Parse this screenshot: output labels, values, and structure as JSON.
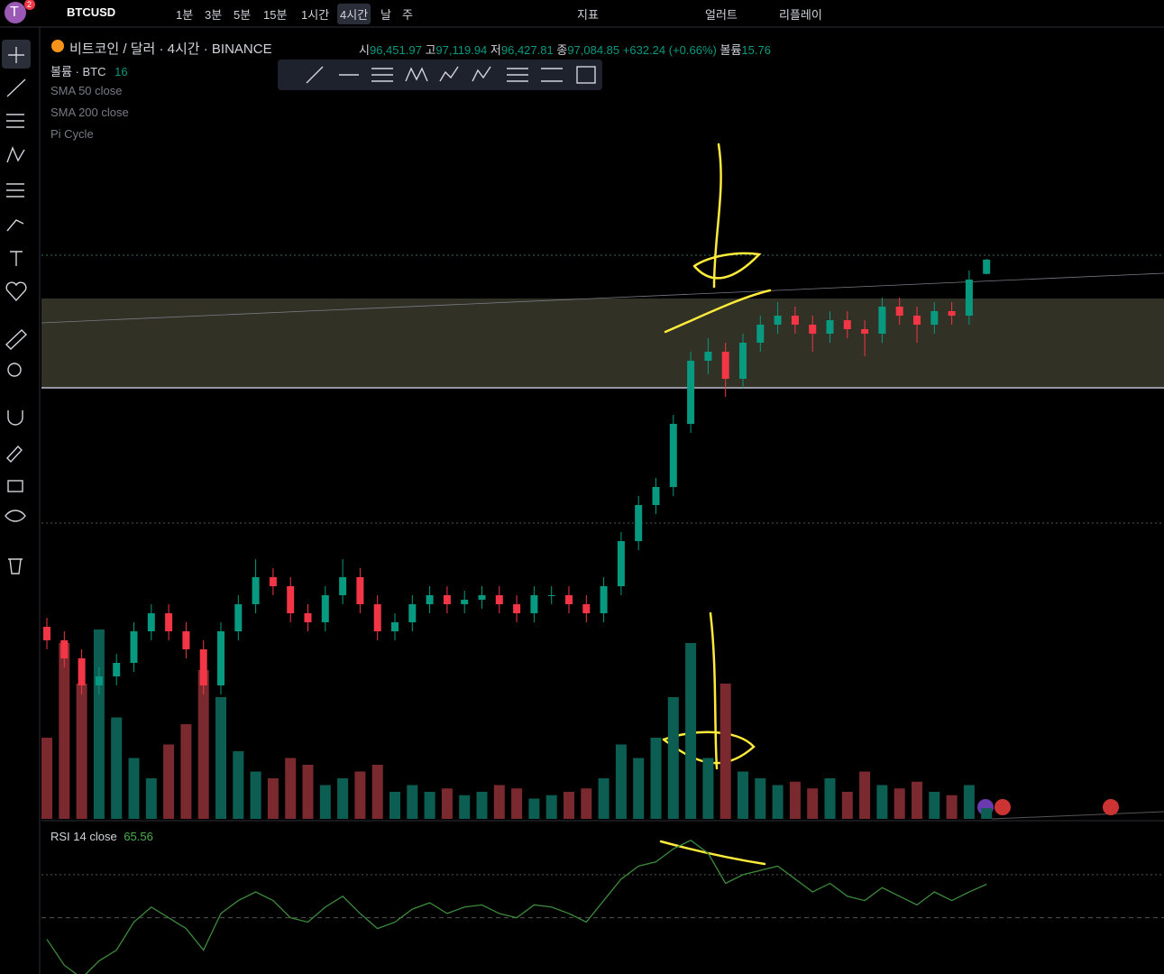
{
  "top_bar": {
    "avatar": "T",
    "badge": "2",
    "symbol": "BTCUSD",
    "timeframes": [
      "1분",
      "3분",
      "5분",
      "15분",
      "1시간",
      "4시간",
      "날",
      "주"
    ],
    "indicators": "지표",
    "alert": "얼러트",
    "replay": "리플레이"
  },
  "legend": {
    "title": "비트코인 / 달러 · 4시간 · BINANCE",
    "ohlc": [
      {
        "label": "시",
        "value": "96,451.97"
      },
      {
        "label": "고",
        "value": "97,119.94"
      },
      {
        "label": "저",
        "value": "96,427.81"
      },
      {
        "label": "종",
        "value": "97,084.85"
      }
    ],
    "change": "+632.24 (+0.66%)",
    "volume_label": "볼륨",
    "volume_value": "15.76",
    "volume_indicator": "볼륨 · BTC",
    "volume_indicator_value": "16",
    "indicators": [
      "SMA 50 close",
      "SMA 200 close",
      "Pi Cycle"
    ]
  },
  "price_chart": {
    "range": [
      72200,
      107000
    ],
    "volume_range": [
      0,
      400
    ],
    "up_color": "#089981",
    "down_color": "#f23645",
    "volume_up_color": "#0c5e52",
    "volume_down_color": "#7a2a2e",
    "candles": [
      [
        80800,
        81200,
        79800,
        80200
      ],
      [
        80200,
        80600,
        79000,
        79400
      ],
      [
        79400,
        79800,
        77800,
        78200
      ],
      [
        78200,
        79000,
        77800,
        78600
      ],
      [
        78600,
        79600,
        78200,
        79200
      ],
      [
        79200,
        81000,
        78800,
        80600
      ],
      [
        80600,
        81800,
        80200,
        81400
      ],
      [
        81400,
        81800,
        80200,
        80600
      ],
      [
        80600,
        81000,
        79400,
        79800
      ],
      [
        79800,
        80200,
        77800,
        78200
      ],
      [
        78200,
        81000,
        77800,
        80600
      ],
      [
        80600,
        82200,
        80200,
        81800
      ],
      [
        81800,
        83800,
        81400,
        83000
      ],
      [
        83000,
        83400,
        82200,
        82600
      ],
      [
        82600,
        83000,
        81000,
        81400
      ],
      [
        81400,
        81800,
        80600,
        81000
      ],
      [
        81000,
        82600,
        80600,
        82200
      ],
      [
        82200,
        83800,
        81800,
        83000
      ],
      [
        83000,
        83400,
        81400,
        81800
      ],
      [
        81800,
        82200,
        80200,
        80600
      ],
      [
        80600,
        81400,
        80200,
        81000
      ],
      [
        81000,
        82200,
        80600,
        81800
      ],
      [
        81800,
        82600,
        81400,
        82200
      ],
      [
        82200,
        82600,
        81400,
        81800
      ],
      [
        81800,
        82400,
        81400,
        82000
      ],
      [
        82000,
        82600,
        81600,
        82200
      ],
      [
        82200,
        82600,
        81400,
        81800
      ],
      [
        81800,
        82200,
        81000,
        81400
      ],
      [
        81400,
        82600,
        81000,
        82200
      ],
      [
        82200,
        82600,
        81800,
        82200
      ],
      [
        82200,
        82600,
        81400,
        81800
      ],
      [
        81800,
        82200,
        81000,
        81400
      ],
      [
        81400,
        83000,
        81000,
        82600
      ],
      [
        82600,
        85000,
        82200,
        84600
      ],
      [
        84600,
        86600,
        84200,
        86200
      ],
      [
        86200,
        87400,
        85800,
        87000
      ],
      [
        87000,
        90200,
        86600,
        89800
      ],
      [
        89800,
        93000,
        89400,
        92600
      ],
      [
        92600,
        93600,
        92000,
        93000
      ],
      [
        93000,
        93400,
        91000,
        91800
      ],
      [
        91800,
        93800,
        91400,
        93400
      ],
      [
        93400,
        94600,
        93000,
        94200
      ],
      [
        94200,
        95200,
        93800,
        94600
      ],
      [
        94600,
        95000,
        93800,
        94200
      ],
      [
        94200,
        94600,
        93000,
        93800
      ],
      [
        93800,
        94800,
        93400,
        94400
      ],
      [
        94400,
        94800,
        93600,
        94000
      ],
      [
        94000,
        94400,
        92800,
        93800
      ],
      [
        93800,
        95400,
        93400,
        95000
      ],
      [
        95000,
        95400,
        94200,
        94600
      ],
      [
        94600,
        95000,
        93400,
        94200
      ],
      [
        94200,
        95200,
        93800,
        94800
      ],
      [
        94800,
        95200,
        94200,
        94600
      ],
      [
        94600,
        96600,
        94200,
        96200
      ],
      [
        96452,
        97120,
        96428,
        97085
      ]
    ],
    "volume": [
      120,
      260,
      200,
      280,
      150,
      90,
      60,
      110,
      140,
      220,
      180,
      100,
      70,
      60,
      90,
      80,
      50,
      60,
      70,
      80,
      40,
      50,
      40,
      45,
      35,
      40,
      50,
      45,
      30,
      35,
      40,
      45,
      60,
      110,
      90,
      120,
      180,
      260,
      90,
      200,
      70,
      60,
      50,
      55,
      45,
      60,
      40,
      70,
      50,
      45,
      55,
      40,
      35,
      50,
      15.76
    ]
  },
  "rsi": {
    "label": "RSI 14 close",
    "value": "65.56",
    "range": [
      26,
      93
    ],
    "levels": [
      70,
      50
    ],
    "color": "#3d8b3d",
    "values": [
      40,
      28,
      22,
      30,
      35,
      48,
      55,
      50,
      45,
      35,
      52,
      58,
      62,
      58,
      50,
      48,
      55,
      60,
      52,
      45,
      48,
      54,
      57,
      52,
      55,
      56,
      52,
      50,
      56,
      55,
      52,
      48,
      58,
      68,
      74,
      76,
      82,
      86,
      80,
      66,
      70,
      72,
      74,
      68,
      62,
      66,
      60,
      58,
      64,
      60,
      56,
      62,
      58,
      62,
      65.56
    ]
  }
}
